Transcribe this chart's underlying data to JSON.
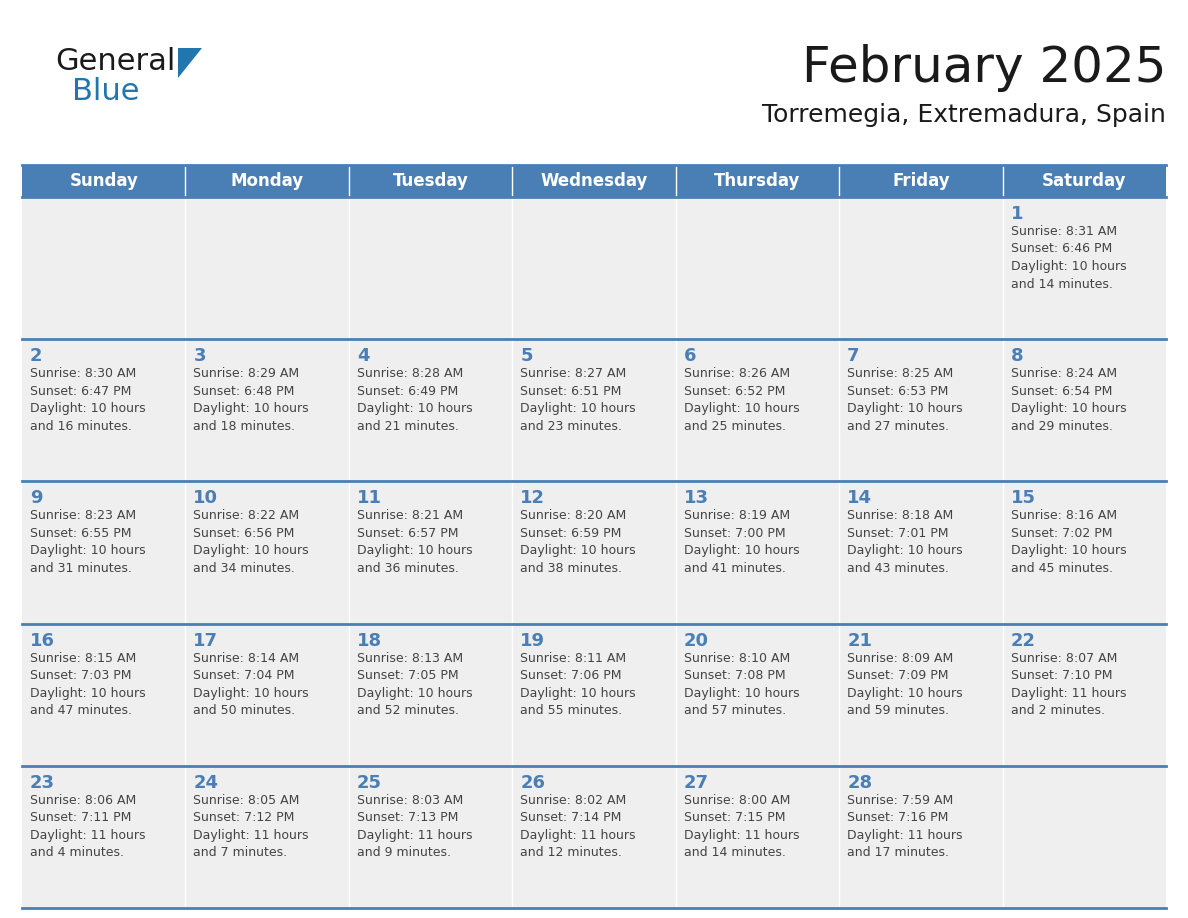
{
  "title": "February 2025",
  "subtitle": "Torremegia, Extremadura, Spain",
  "header_color": "#4a7fb5",
  "header_text_color": "#ffffff",
  "cell_bg": "#efefef",
  "day_text_color": "#4a7fb5",
  "content_text_color": "#444444",
  "border_color": "#4a7fb5",
  "days_of_week": [
    "Sunday",
    "Monday",
    "Tuesday",
    "Wednesday",
    "Thursday",
    "Friday",
    "Saturday"
  ],
  "calendar_data": [
    [
      {
        "day": "",
        "sunrise": "",
        "sunset": "",
        "daylight": ""
      },
      {
        "day": "",
        "sunrise": "",
        "sunset": "",
        "daylight": ""
      },
      {
        "day": "",
        "sunrise": "",
        "sunset": "",
        "daylight": ""
      },
      {
        "day": "",
        "sunrise": "",
        "sunset": "",
        "daylight": ""
      },
      {
        "day": "",
        "sunrise": "",
        "sunset": "",
        "daylight": ""
      },
      {
        "day": "",
        "sunrise": "",
        "sunset": "",
        "daylight": ""
      },
      {
        "day": "1",
        "sunrise": "8:31 AM",
        "sunset": "6:46 PM",
        "daylight": "10 hours\nand 14 minutes."
      }
    ],
    [
      {
        "day": "2",
        "sunrise": "8:30 AM",
        "sunset": "6:47 PM",
        "daylight": "10 hours\nand 16 minutes."
      },
      {
        "day": "3",
        "sunrise": "8:29 AM",
        "sunset": "6:48 PM",
        "daylight": "10 hours\nand 18 minutes."
      },
      {
        "day": "4",
        "sunrise": "8:28 AM",
        "sunset": "6:49 PM",
        "daylight": "10 hours\nand 21 minutes."
      },
      {
        "day": "5",
        "sunrise": "8:27 AM",
        "sunset": "6:51 PM",
        "daylight": "10 hours\nand 23 minutes."
      },
      {
        "day": "6",
        "sunrise": "8:26 AM",
        "sunset": "6:52 PM",
        "daylight": "10 hours\nand 25 minutes."
      },
      {
        "day": "7",
        "sunrise": "8:25 AM",
        "sunset": "6:53 PM",
        "daylight": "10 hours\nand 27 minutes."
      },
      {
        "day": "8",
        "sunrise": "8:24 AM",
        "sunset": "6:54 PM",
        "daylight": "10 hours\nand 29 minutes."
      }
    ],
    [
      {
        "day": "9",
        "sunrise": "8:23 AM",
        "sunset": "6:55 PM",
        "daylight": "10 hours\nand 31 minutes."
      },
      {
        "day": "10",
        "sunrise": "8:22 AM",
        "sunset": "6:56 PM",
        "daylight": "10 hours\nand 34 minutes."
      },
      {
        "day": "11",
        "sunrise": "8:21 AM",
        "sunset": "6:57 PM",
        "daylight": "10 hours\nand 36 minutes."
      },
      {
        "day": "12",
        "sunrise": "8:20 AM",
        "sunset": "6:59 PM",
        "daylight": "10 hours\nand 38 minutes."
      },
      {
        "day": "13",
        "sunrise": "8:19 AM",
        "sunset": "7:00 PM",
        "daylight": "10 hours\nand 41 minutes."
      },
      {
        "day": "14",
        "sunrise": "8:18 AM",
        "sunset": "7:01 PM",
        "daylight": "10 hours\nand 43 minutes."
      },
      {
        "day": "15",
        "sunrise": "8:16 AM",
        "sunset": "7:02 PM",
        "daylight": "10 hours\nand 45 minutes."
      }
    ],
    [
      {
        "day": "16",
        "sunrise": "8:15 AM",
        "sunset": "7:03 PM",
        "daylight": "10 hours\nand 47 minutes."
      },
      {
        "day": "17",
        "sunrise": "8:14 AM",
        "sunset": "7:04 PM",
        "daylight": "10 hours\nand 50 minutes."
      },
      {
        "day": "18",
        "sunrise": "8:13 AM",
        "sunset": "7:05 PM",
        "daylight": "10 hours\nand 52 minutes."
      },
      {
        "day": "19",
        "sunrise": "8:11 AM",
        "sunset": "7:06 PM",
        "daylight": "10 hours\nand 55 minutes."
      },
      {
        "day": "20",
        "sunrise": "8:10 AM",
        "sunset": "7:08 PM",
        "daylight": "10 hours\nand 57 minutes."
      },
      {
        "day": "21",
        "sunrise": "8:09 AM",
        "sunset": "7:09 PM",
        "daylight": "10 hours\nand 59 minutes."
      },
      {
        "day": "22",
        "sunrise": "8:07 AM",
        "sunset": "7:10 PM",
        "daylight": "11 hours\nand 2 minutes."
      }
    ],
    [
      {
        "day": "23",
        "sunrise": "8:06 AM",
        "sunset": "7:11 PM",
        "daylight": "11 hours\nand 4 minutes."
      },
      {
        "day": "24",
        "sunrise": "8:05 AM",
        "sunset": "7:12 PM",
        "daylight": "11 hours\nand 7 minutes."
      },
      {
        "day": "25",
        "sunrise": "8:03 AM",
        "sunset": "7:13 PM",
        "daylight": "11 hours\nand 9 minutes."
      },
      {
        "day": "26",
        "sunrise": "8:02 AM",
        "sunset": "7:14 PM",
        "daylight": "11 hours\nand 12 minutes."
      },
      {
        "day": "27",
        "sunrise": "8:00 AM",
        "sunset": "7:15 PM",
        "daylight": "11 hours\nand 14 minutes."
      },
      {
        "day": "28",
        "sunrise": "7:59 AM",
        "sunset": "7:16 PM",
        "daylight": "11 hours\nand 17 minutes."
      },
      {
        "day": "",
        "sunrise": "",
        "sunset": "",
        "daylight": ""
      }
    ]
  ],
  "logo_general_color": "#1a1a1a",
  "logo_blue_color": "#2176ae",
  "logo_triangle_color": "#2176ae",
  "title_fontsize": 36,
  "subtitle_fontsize": 18,
  "dow_fontsize": 12,
  "day_num_fontsize": 13,
  "cell_text_fontsize": 9
}
